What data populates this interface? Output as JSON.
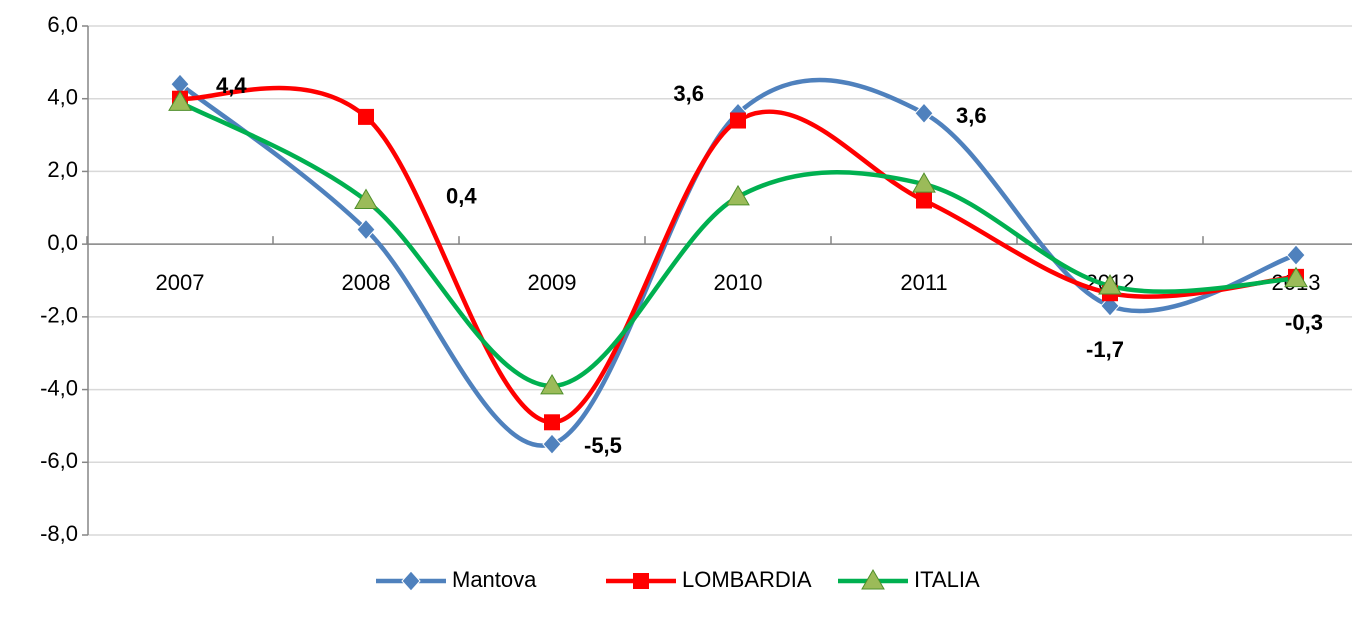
{
  "chart_data": {
    "type": "line",
    "categories": [
      "2007",
      "2008",
      "2009",
      "2010",
      "2011",
      "2012",
      "2013"
    ],
    "series": [
      {
        "name": "Mantova",
        "color": "#4f81bd",
        "marker": "diamond",
        "values": [
          4.4,
          0.4,
          -5.5,
          3.6,
          3.6,
          -1.7,
          -0.3
        ],
        "value_labels": [
          "4,4",
          "0,4",
          "-5,5",
          "3,6",
          "3,6",
          "-1,7",
          "-0,3"
        ]
      },
      {
        "name": "LOMBARDIA",
        "color": "#ff0000",
        "marker": "square",
        "values": [
          4.0,
          3.5,
          -4.9,
          3.4,
          1.2,
          -1.35,
          -0.9
        ]
      },
      {
        "name": "ITALIA",
        "color": "#00b050",
        "marker": "triangle",
        "values": [
          3.9,
          1.2,
          -3.9,
          1.3,
          1.65,
          -1.15,
          -0.95
        ]
      }
    ],
    "ylim": [
      -8,
      6
    ],
    "yticks": [
      {
        "value": -8,
        "label": "-8,0"
      },
      {
        "value": -6,
        "label": "-6,0"
      },
      {
        "value": -4,
        "label": "-4,0"
      },
      {
        "value": -2,
        "label": "-2,0"
      },
      {
        "value": 0,
        "label": "0,0"
      },
      {
        "value": 2,
        "label": "2,0"
      },
      {
        "value": 4,
        "label": "4,0"
      },
      {
        "value": 6,
        "label": "6,0"
      }
    ],
    "grid": true,
    "smooth": true,
    "legend": "bottom"
  }
}
